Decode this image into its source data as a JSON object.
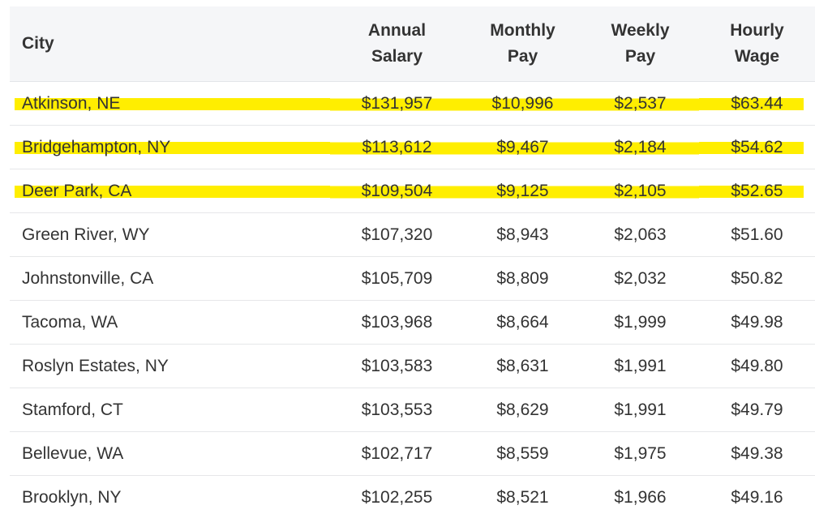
{
  "table": {
    "headers": {
      "city": "City",
      "annual_line1": "Annual",
      "annual_line2": "Salary",
      "monthly_line1": "Monthly",
      "monthly_line2": "Pay",
      "weekly_line1": "Weekly",
      "weekly_line2": "Pay",
      "hourly_line1": "Hourly",
      "hourly_line2": "Wage"
    },
    "highlight_color": "#ffee00",
    "rows": [
      {
        "city": "Atkinson, NE",
        "annual": "$131,957",
        "monthly": "$10,996",
        "weekly": "$2,537",
        "hourly": "$63.44",
        "highlighted": true
      },
      {
        "city": "Bridgehampton, NY",
        "annual": "$113,612",
        "monthly": "$9,467",
        "weekly": "$2,184",
        "hourly": "$54.62",
        "highlighted": true
      },
      {
        "city": "Deer Park, CA",
        "annual": "$109,504",
        "monthly": "$9,125",
        "weekly": "$2,105",
        "hourly": "$52.65",
        "highlighted": true
      },
      {
        "city": "Green River, WY",
        "annual": "$107,320",
        "monthly": "$8,943",
        "weekly": "$2,063",
        "hourly": "$51.60",
        "highlighted": false
      },
      {
        "city": "Johnstonville, CA",
        "annual": "$105,709",
        "monthly": "$8,809",
        "weekly": "$2,032",
        "hourly": "$50.82",
        "highlighted": false
      },
      {
        "city": "Tacoma, WA",
        "annual": "$103,968",
        "monthly": "$8,664",
        "weekly": "$1,999",
        "hourly": "$49.98",
        "highlighted": false
      },
      {
        "city": "Roslyn Estates, NY",
        "annual": "$103,583",
        "monthly": "$8,631",
        "weekly": "$1,991",
        "hourly": "$49.80",
        "highlighted": false
      },
      {
        "city": "Stamford, CT",
        "annual": "$103,553",
        "monthly": "$8,629",
        "weekly": "$1,991",
        "hourly": "$49.79",
        "highlighted": false
      },
      {
        "city": "Bellevue, WA",
        "annual": "$102,717",
        "monthly": "$8,559",
        "weekly": "$1,975",
        "hourly": "$49.38",
        "highlighted": false
      },
      {
        "city": "Brooklyn, NY",
        "annual": "$102,255",
        "monthly": "$8,521",
        "weekly": "$1,966",
        "hourly": "$49.16",
        "highlighted": false
      }
    ]
  }
}
